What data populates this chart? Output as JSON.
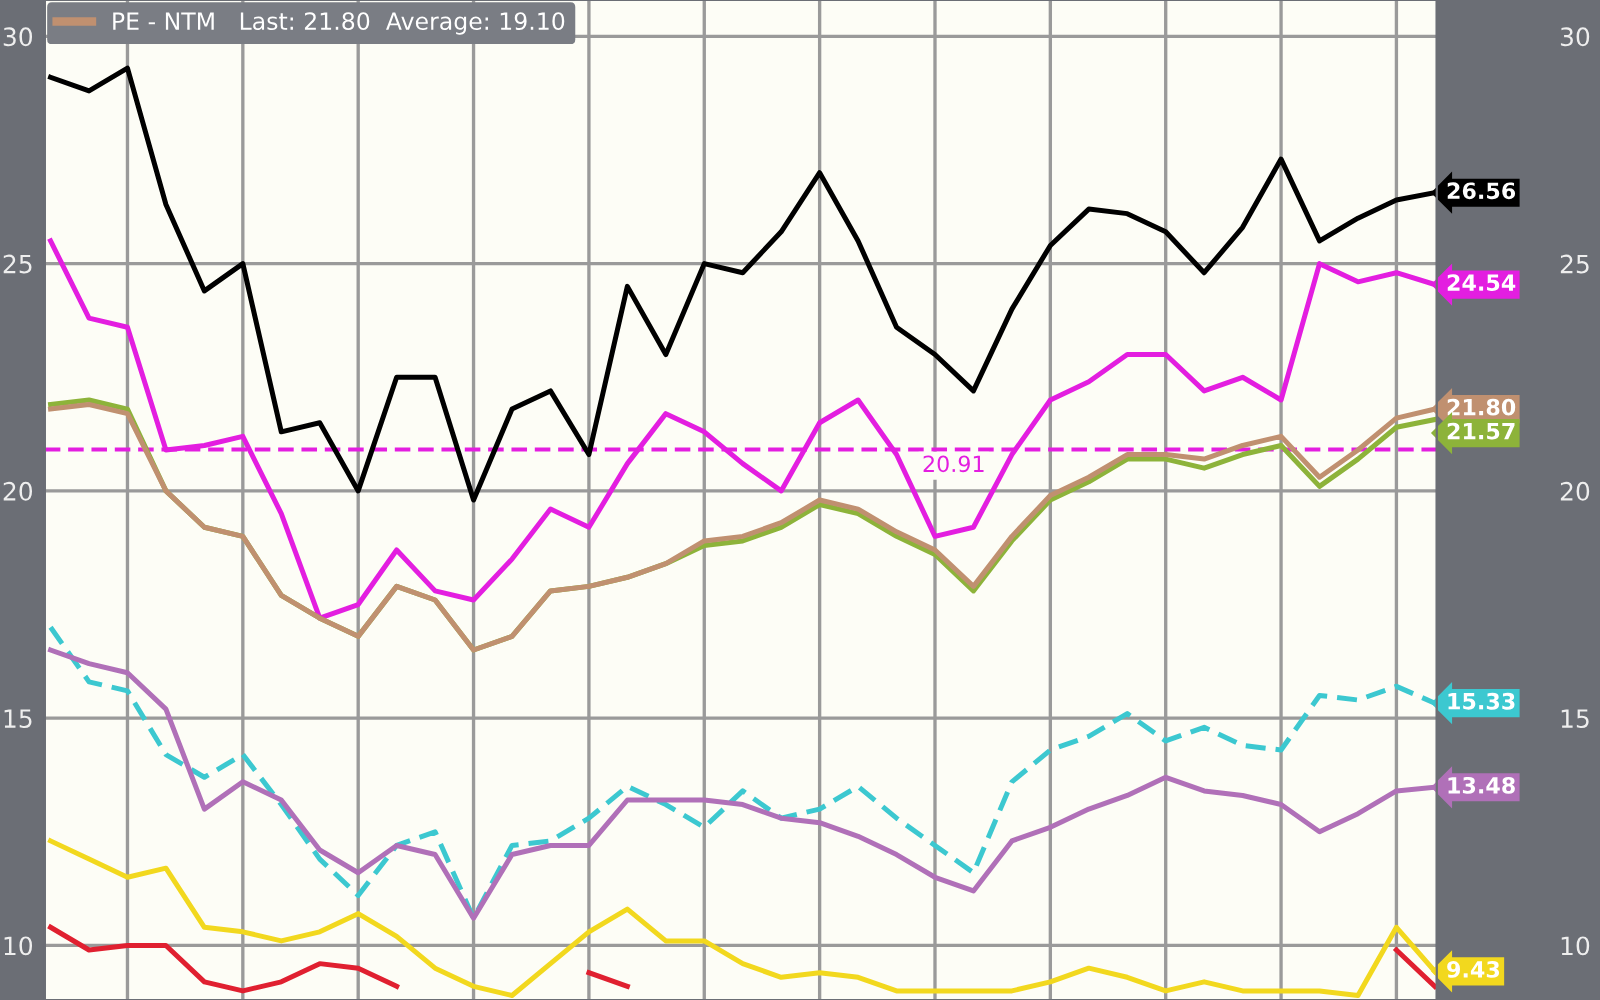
{
  "chart_data": {
    "type": "line",
    "categories": [
      null,
      null,
      null,
      null,
      null,
      null,
      null,
      null,
      null,
      null,
      null,
      null,
      null,
      null,
      null,
      null,
      null,
      null,
      null,
      null,
      null,
      null,
      null,
      null,
      null,
      null,
      null,
      null,
      null,
      null,
      null,
      null,
      null,
      null,
      null,
      null,
      null
    ],
    "series": [
      {
        "color": "#000000",
        "values": [
          29.1,
          28.8,
          29.3,
          26.3,
          24.4,
          25.0,
          21.3,
          21.5,
          20.0,
          22.5,
          22.5,
          19.8,
          21.8,
          22.2,
          20.8,
          24.5,
          23.0,
          25.0,
          24.8,
          25.7,
          27.0,
          25.5,
          23.6,
          23.0,
          22.2,
          24.0,
          25.4,
          26.2,
          26.1,
          25.7,
          24.8,
          25.8,
          27.3,
          25.5,
          26.0,
          26.4,
          26.56
        ],
        "value_labels": [
          null,
          null,
          null,
          null,
          null,
          null,
          null,
          null,
          null,
          null,
          null,
          null,
          null,
          null,
          null,
          null,
          null,
          null,
          null,
          null,
          null,
          null,
          null,
          null,
          null,
          null,
          null,
          null,
          null,
          null,
          null,
          null,
          null,
          null,
          null,
          null,
          "26.56"
        ]
      },
      {
        "color": "#e31ee0",
        "values": [
          25.5,
          23.8,
          23.6,
          20.9,
          21.0,
          21.2,
          19.5,
          17.2,
          17.5,
          18.7,
          17.8,
          17.6,
          18.5,
          19.6,
          19.2,
          20.6,
          21.7,
          21.3,
          20.6,
          20.0,
          21.5,
          22.0,
          20.8,
          19.0,
          19.2,
          20.8,
          22.0,
          22.4,
          23.0,
          23.0,
          22.2,
          22.5,
          22.0,
          25.0,
          24.6,
          24.8,
          24.54
        ],
        "value_labels": [
          null,
          null,
          null,
          null,
          null,
          null,
          null,
          null,
          null,
          null,
          null,
          null,
          null,
          null,
          null,
          null,
          null,
          null,
          null,
          null,
          null,
          null,
          null,
          null,
          null,
          null,
          null,
          null,
          null,
          null,
          null,
          null,
          null,
          null,
          null,
          null,
          "24.54"
        ]
      },
      {
        "color": "#8db33a",
        "values": [
          21.9,
          22.0,
          21.8,
          20.0,
          19.2,
          19.0,
          17.7,
          17.2,
          16.8,
          17.9,
          17.6,
          16.5,
          16.8,
          17.8,
          17.9,
          18.1,
          18.4,
          18.8,
          18.9,
          19.2,
          19.7,
          19.5,
          19.0,
          18.6,
          17.8,
          18.9,
          19.8,
          20.2,
          20.7,
          20.7,
          20.5,
          20.8,
          21.0,
          20.1,
          20.7,
          21.4,
          21.57
        ],
        "value_labels": [
          null,
          null,
          null,
          null,
          null,
          null,
          null,
          null,
          null,
          null,
          null,
          null,
          null,
          null,
          null,
          null,
          null,
          null,
          null,
          null,
          null,
          null,
          null,
          null,
          null,
          null,
          null,
          null,
          null,
          null,
          null,
          null,
          null,
          null,
          null,
          null,
          "21.57"
        ]
      },
      {
        "name": "PE - NTM   Last: 21.80  Average: 19.10",
        "color": "#c09070",
        "values": [
          21.8,
          21.9,
          21.7,
          20.0,
          19.2,
          19.0,
          17.7,
          17.2,
          16.8,
          17.9,
          17.6,
          16.5,
          16.8,
          17.8,
          17.9,
          18.1,
          18.4,
          18.9,
          19.0,
          19.3,
          19.8,
          19.6,
          19.1,
          18.7,
          17.9,
          19.0,
          19.9,
          20.3,
          20.8,
          20.8,
          20.7,
          21.0,
          21.2,
          20.3,
          20.9,
          21.6,
          21.8
        ],
        "value_labels": [
          null,
          null,
          null,
          null,
          null,
          null,
          null,
          null,
          null,
          null,
          null,
          null,
          null,
          null,
          null,
          null,
          null,
          null,
          null,
          null,
          null,
          null,
          null,
          null,
          null,
          null,
          null,
          null,
          null,
          null,
          null,
          null,
          null,
          null,
          null,
          null,
          "21.80"
        ]
      },
      {
        "color": "#3cc8d0",
        "line_style": "dashed",
        "values": [
          17.0,
          15.8,
          15.6,
          14.2,
          13.7,
          14.2,
          13.1,
          11.9,
          11.1,
          12.2,
          12.5,
          10.6,
          12.2,
          12.3,
          12.8,
          13.5,
          13.1,
          12.6,
          13.4,
          12.8,
          13.0,
          13.5,
          12.8,
          12.2,
          11.6,
          13.6,
          14.3,
          14.6,
          15.1,
          14.5,
          14.8,
          14.4,
          14.3,
          15.5,
          15.4,
          15.7,
          15.33
        ],
        "value_labels": [
          null,
          null,
          null,
          null,
          null,
          null,
          null,
          null,
          null,
          null,
          null,
          null,
          null,
          null,
          null,
          null,
          null,
          null,
          null,
          null,
          null,
          null,
          null,
          null,
          null,
          null,
          null,
          null,
          null,
          null,
          null,
          null,
          null,
          null,
          null,
          null,
          "15.33"
        ]
      },
      {
        "color": "#b070b8",
        "values": [
          16.5,
          16.2,
          16.0,
          15.2,
          13.0,
          13.6,
          13.2,
          12.1,
          11.6,
          12.2,
          12.0,
          10.6,
          12.0,
          12.2,
          12.2,
          13.2,
          13.2,
          13.2,
          13.1,
          12.8,
          12.7,
          12.4,
          12.0,
          11.5,
          11.2,
          12.3,
          12.6,
          13.0,
          13.3,
          13.7,
          13.4,
          13.3,
          13.1,
          12.5,
          12.9,
          13.4,
          13.48
        ],
        "value_labels": [
          null,
          null,
          null,
          null,
          null,
          null,
          null,
          null,
          null,
          null,
          null,
          null,
          null,
          null,
          null,
          null,
          null,
          null,
          null,
          null,
          null,
          null,
          null,
          null,
          null,
          null,
          null,
          null,
          null,
          null,
          null,
          null,
          null,
          null,
          null,
          null,
          "13.48"
        ]
      },
      {
        "color": "#f2d81e",
        "values": [
          12.3,
          11.9,
          11.5,
          11.7,
          10.4,
          10.3,
          10.1,
          10.3,
          10.7,
          10.2,
          9.5,
          9.1,
          8.9,
          9.6,
          10.3,
          10.8,
          10.1,
          10.1,
          9.6,
          9.3,
          9.4,
          9.3,
          9.0,
          9.0,
          9.0,
          9.0,
          9.2,
          9.5,
          9.3,
          9.0,
          9.2,
          9.0,
          9.0,
          9.0,
          8.9,
          10.4,
          9.43
        ],
        "value_labels": [
          null,
          null,
          null,
          null,
          null,
          null,
          null,
          null,
          null,
          null,
          null,
          null,
          null,
          null,
          null,
          null,
          null,
          null,
          null,
          null,
          null,
          null,
          null,
          null,
          null,
          null,
          null,
          null,
          null,
          null,
          null,
          null,
          null,
          null,
          null,
          null,
          "9.43"
        ]
      },
      {
        "color": "#e02030",
        "values": [
          10.4,
          9.9,
          10.0,
          10.0,
          9.2,
          9.0,
          9.2,
          9.6,
          9.5,
          9.1,
          null,
          null,
          null,
          null,
          9.4,
          9.1,
          null,
          null,
          null,
          null,
          null,
          null,
          null,
          null,
          null,
          null,
          null,
          null,
          null,
          null,
          null,
          null,
          null,
          null,
          null,
          9.9,
          9.1
        ]
      }
    ],
    "ref_lines": [
      {
        "axis": "y",
        "value": 20.91,
        "label": "20.91",
        "color": "#e31ee0",
        "line_style": "dashed"
      }
    ],
    "ylim": [
      8.8,
      30.8
    ],
    "yticks": [
      10,
      15,
      20,
      25,
      30
    ],
    "y2lim": [
      8.8,
      30.8
    ],
    "y2ticks": [
      10,
      15,
      20,
      25,
      30
    ],
    "grid": true,
    "legend": "top left"
  }
}
